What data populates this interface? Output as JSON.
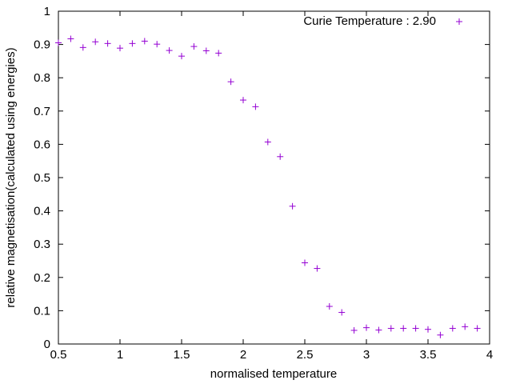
{
  "chart_data": {
    "type": "scatter",
    "title": "",
    "xlabel": "normalised temperature",
    "ylabel": "relative magnetisation(calculated using energies)",
    "xlim": [
      0.5,
      4
    ],
    "ylim": [
      0,
      1
    ],
    "xticks": [
      0.5,
      1,
      1.5,
      2,
      2.5,
      3,
      3.5,
      4
    ],
    "xtick_labels": [
      "0.5",
      "1",
      "1.5",
      "2",
      "2.5",
      "3",
      "3.5",
      "4"
    ],
    "yticks": [
      0,
      0.1,
      0.2,
      0.3,
      0.4,
      0.5,
      0.6,
      0.7,
      0.8,
      0.9,
      1
    ],
    "ytick_labels": [
      "0",
      "0.1",
      "0.2",
      "0.3",
      "0.4",
      "0.5",
      "0.6",
      "0.7",
      "0.8",
      "0.9",
      "1"
    ],
    "grid": false,
    "legend_position": "top-right",
    "marker": "plus",
    "series": [
      {
        "name": "Curie Temperature : 2.90",
        "color": "#9400d3",
        "x": [
          0.5,
          0.6,
          0.7,
          0.8,
          0.9,
          1.0,
          1.1,
          1.2,
          1.3,
          1.4,
          1.5,
          1.6,
          1.7,
          1.8,
          1.9,
          2.0,
          2.1,
          2.2,
          2.3,
          2.4,
          2.5,
          2.6,
          2.7,
          2.8,
          2.9,
          3.0,
          3.1,
          3.2,
          3.3,
          3.4,
          3.5,
          3.6,
          3.7,
          3.8,
          3.9
        ],
        "y": [
          0.905,
          0.917,
          0.891,
          0.908,
          0.903,
          0.889,
          0.903,
          0.91,
          0.901,
          0.882,
          0.865,
          0.894,
          0.881,
          0.874,
          0.788,
          0.733,
          0.713,
          0.607,
          0.563,
          0.414,
          0.244,
          0.227,
          0.113,
          0.095,
          0.041,
          0.049,
          0.042,
          0.047,
          0.047,
          0.047,
          0.044,
          0.027,
          0.047,
          0.052,
          0.047
        ]
      }
    ]
  }
}
